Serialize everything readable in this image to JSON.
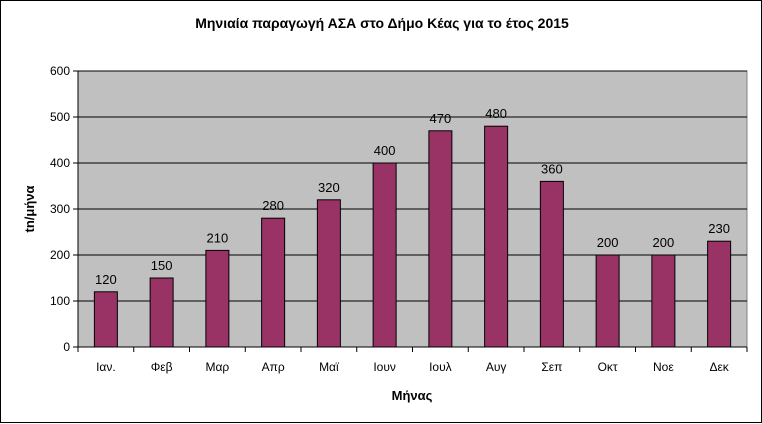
{
  "chart_data": {
    "type": "bar",
    "title": "Μηνιαία παραγωγή ΑΣΑ στο Δήμο Κέας για το έτος 2015",
    "xlabel": "Μήνας",
    "ylabel": "tn/μήνα",
    "categories": [
      "Ιαν.",
      "Φεβ",
      "Μαρ",
      "Απρ",
      "Μαϊ",
      "Ιουν",
      "Ιουλ",
      "Αυγ",
      "Σεπ",
      "Οκτ",
      "Νοε",
      "Δεκ"
    ],
    "values": [
      120,
      150,
      210,
      280,
      320,
      400,
      470,
      480,
      360,
      200,
      200,
      230
    ],
    "ylim": [
      0,
      600
    ],
    "yticks": [
      0,
      100,
      200,
      300,
      400,
      500,
      600
    ],
    "grid": true,
    "legend": "none",
    "colors": {
      "bar": "#993366",
      "plot_bg": "#c0c0c0",
      "grid": "#000000"
    }
  }
}
